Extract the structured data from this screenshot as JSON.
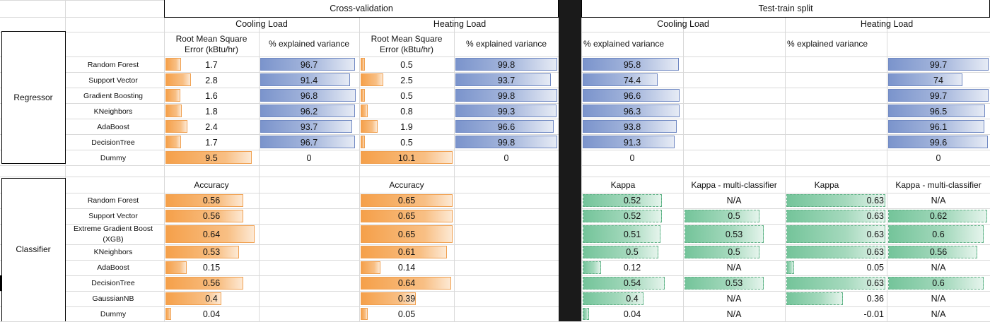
{
  "left": {
    "section_title": "Cross-validation",
    "load_headers": [
      "Cooling Load",
      "Heating Load"
    ],
    "regressor": {
      "group_label": "Regressor",
      "metric_headers": [
        "Root Mean Square\nError (kBtu/hr)",
        "% explained variance",
        "Root Mean Square\nError (kBtu/hr)",
        "% explained variance"
      ],
      "rows": [
        {
          "name": "Random Forest",
          "values": [
            "1.7",
            "96.7",
            "0.5",
            "99.8"
          ]
        },
        {
          "name": "Support Vector",
          "values": [
            "2.8",
            "91.4",
            "2.5",
            "93.7"
          ]
        },
        {
          "name": "Gradient Boosting",
          "values": [
            "1.6",
            "96.8",
            "0.5",
            "99.8"
          ]
        },
        {
          "name": "KNeighbors",
          "values": [
            "1.8",
            "96.2",
            "0.8",
            "99.3"
          ]
        },
        {
          "name": "AdaBoost",
          "values": [
            "2.4",
            "93.7",
            "1.9",
            "96.6"
          ]
        },
        {
          "name": "DecisionTree",
          "values": [
            "1.7",
            "96.7",
            "0.5",
            "99.8"
          ]
        },
        {
          "name": "Dummy",
          "values": [
            "9.5",
            "0",
            "10.1",
            "0"
          ]
        }
      ]
    },
    "classifier": {
      "group_label": "Classifier",
      "metric_headers": [
        "Accuracy",
        "Accuracy"
      ],
      "rows": [
        {
          "name": "Random Forest",
          "values": [
            "0.56",
            "0.65"
          ]
        },
        {
          "name": "Support Vector",
          "values": [
            "0.56",
            "0.65"
          ]
        },
        {
          "name": "Extreme Gradient Boost\n(XGB)",
          "values": [
            "0.64",
            "0.65"
          ]
        },
        {
          "name": "KNeighbors",
          "values": [
            "0.53",
            "0.61"
          ]
        },
        {
          "name": "AdaBoost",
          "values": [
            "0.15",
            "0.14"
          ]
        },
        {
          "name": "DecisionTree",
          "values": [
            "0.56",
            "0.64"
          ]
        },
        {
          "name": "GaussianNB",
          "values": [
            "0.4",
            "0.39"
          ]
        },
        {
          "name": "Dummy",
          "values": [
            "0.04",
            "0.05"
          ]
        }
      ]
    }
  },
  "right": {
    "section_title": "Test-train split",
    "load_headers": [
      "Cooling Load",
      "Heating Load"
    ],
    "regressor": {
      "metric_headers": [
        "% explained variance",
        "% explained variance"
      ],
      "values": [
        [
          "95.8",
          "99.7"
        ],
        [
          "74.4",
          "74"
        ],
        [
          "96.6",
          "99.7"
        ],
        [
          "96.3",
          "96.5"
        ],
        [
          "93.8",
          "96.1"
        ],
        [
          "91.3",
          "99.6"
        ],
        [
          "0",
          "0"
        ]
      ]
    },
    "classifier": {
      "metric_headers": [
        "Kappa",
        "Kappa - multi-classifier",
        "Kappa",
        "Kappa - multi-classifier"
      ],
      "values": [
        [
          "0.52",
          "N/A",
          "0.63",
          "N/A"
        ],
        [
          "0.52",
          "0.5",
          "0.63",
          "0.62"
        ],
        [
          "0.51",
          "0.53",
          "0.63",
          "0.6"
        ],
        [
          "0.5",
          "0.5",
          "0.63",
          "0.56"
        ],
        [
          "0.12",
          "N/A",
          "0.05",
          "N/A"
        ],
        [
          "0.54",
          "0.53",
          "0.63",
          "0.6"
        ],
        [
          "0.4",
          "N/A",
          "0.36",
          "N/A"
        ],
        [
          "0.04",
          "N/A",
          "-0.01",
          "N/A"
        ]
      ]
    }
  },
  "colors": {
    "orange": "#f5a04a",
    "blue": "#7b94cc",
    "green": "#74c49a",
    "grid": "#d9d9d9",
    "divider": "#1a1a1a"
  }
}
